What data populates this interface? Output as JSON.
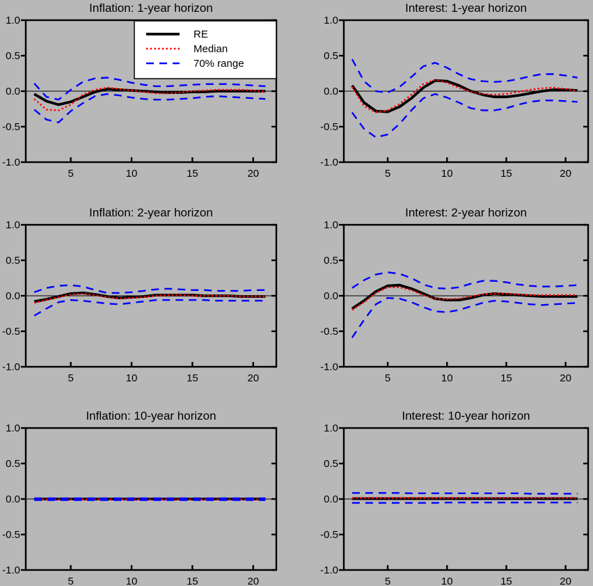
{
  "figure": {
    "background_color": "#b8b8b8",
    "plot_background_color": "#b8b8b8",
    "axis_color": "#000000",
    "legend_background": "#ffffff"
  },
  "legend": {
    "position": "top-left-subplot",
    "entries": [
      {
        "label": "RE",
        "color": "#000000",
        "style": "solid"
      },
      {
        "label": "Median",
        "color": "#ff0000",
        "style": "dotted"
      },
      {
        "label": "70% range",
        "color": "#0000ff",
        "style": "dashed"
      }
    ]
  },
  "chart_data": [
    {
      "type": "line",
      "id": "inflation-1yr",
      "title": "Inflation: 1-year horizon",
      "grid": {
        "row": 0,
        "col": 0
      },
      "legend": true,
      "xlim": [
        1.3,
        21.9
      ],
      "ylim": [
        -1,
        1
      ],
      "xticks": [
        5,
        10,
        15,
        20
      ],
      "xtick_labels": [
        "5",
        "10",
        "15",
        "20"
      ],
      "yticks": [
        1,
        0.5,
        0,
        -0.5,
        -1
      ],
      "ytick_labels": [
        "1.0",
        "0.5",
        "0.0",
        "-0.5",
        "-1.0"
      ],
      "zero_line": true,
      "x": [
        2,
        3,
        4,
        5,
        6,
        7,
        8,
        9,
        10,
        11,
        12,
        13,
        14,
        15,
        16,
        17,
        18,
        19,
        20,
        21
      ],
      "series": [
        {
          "name": "RE",
          "color": "#000000",
          "style": "solid",
          "values": [
            -0.04,
            -0.14,
            -0.19,
            -0.15,
            -0.08,
            -0.01,
            0.03,
            0.02,
            0.01,
            0.0,
            -0.01,
            -0.02,
            -0.02,
            -0.01,
            -0.01,
            0.0,
            0.0,
            0.0,
            0.0,
            0.0
          ]
        },
        {
          "name": "Median",
          "color": "#ff0000",
          "style": "dotted",
          "values": [
            -0.11,
            -0.26,
            -0.27,
            -0.19,
            -0.05,
            0.02,
            0.05,
            0.03,
            0.01,
            -0.01,
            -0.03,
            -0.03,
            -0.02,
            0.0,
            0.01,
            0.02,
            0.02,
            0.02,
            0.01,
            -0.01
          ]
        },
        {
          "name": "70% range (upper)",
          "color": "#0000ff",
          "style": "dashed",
          "values": [
            0.11,
            -0.08,
            -0.12,
            0.02,
            0.13,
            0.18,
            0.19,
            0.16,
            0.12,
            0.09,
            0.07,
            0.07,
            0.08,
            0.09,
            0.1,
            0.1,
            0.1,
            0.09,
            0.08,
            0.07
          ]
        },
        {
          "name": "70% range (lower)",
          "color": "#0000ff",
          "style": "dashed",
          "values": [
            -0.26,
            -0.4,
            -0.44,
            -0.28,
            -0.17,
            -0.07,
            -0.04,
            -0.06,
            -0.09,
            -0.11,
            -0.12,
            -0.12,
            -0.11,
            -0.1,
            -0.08,
            -0.07,
            -0.08,
            -0.09,
            -0.1,
            -0.11
          ]
        }
      ]
    },
    {
      "type": "line",
      "id": "interest-1yr",
      "title": "Interest: 1-year horizon",
      "grid": {
        "row": 0,
        "col": 1
      },
      "legend": false,
      "xlim": [
        1.3,
        21.9
      ],
      "ylim": [
        -1,
        1
      ],
      "xticks": [
        5,
        10,
        15,
        20
      ],
      "xtick_labels": [
        "5",
        "10",
        "15",
        "20"
      ],
      "yticks": [
        1,
        0.5,
        0,
        -0.5,
        -1
      ],
      "ytick_labels": [
        "1.0",
        "0.5",
        "0.0",
        "-0.5",
        "-1.0"
      ],
      "zero_line": true,
      "x": [
        2,
        3,
        4,
        5,
        6,
        7,
        8,
        9,
        10,
        11,
        12,
        13,
        14,
        15,
        16,
        17,
        18,
        19,
        20,
        21
      ],
      "series": [
        {
          "name": "RE",
          "color": "#000000",
          "style": "solid",
          "values": [
            0.08,
            -0.16,
            -0.28,
            -0.29,
            -0.22,
            -0.1,
            0.05,
            0.15,
            0.14,
            0.08,
            0.0,
            -0.05,
            -0.08,
            -0.08,
            -0.06,
            -0.03,
            0.0,
            0.02,
            0.02,
            0.01
          ]
        },
        {
          "name": "Median",
          "color": "#ff0000",
          "style": "dotted",
          "values": [
            0.06,
            -0.21,
            -0.3,
            -0.27,
            -0.18,
            -0.05,
            0.1,
            0.16,
            0.12,
            0.05,
            -0.01,
            -0.04,
            -0.05,
            -0.04,
            -0.01,
            0.02,
            0.04,
            0.05,
            0.03,
            0.0
          ]
        },
        {
          "name": "70% range (upper)",
          "color": "#0000ff",
          "style": "dashed",
          "values": [
            0.45,
            0.14,
            0.0,
            -0.02,
            0.06,
            0.2,
            0.35,
            0.4,
            0.33,
            0.24,
            0.17,
            0.14,
            0.13,
            0.14,
            0.17,
            0.21,
            0.24,
            0.24,
            0.22,
            0.19
          ]
        },
        {
          "name": "70% range (lower)",
          "color": "#0000ff",
          "style": "dashed",
          "values": [
            -0.3,
            -0.53,
            -0.65,
            -0.61,
            -0.46,
            -0.27,
            -0.1,
            -0.04,
            -0.09,
            -0.16,
            -0.24,
            -0.27,
            -0.27,
            -0.24,
            -0.19,
            -0.15,
            -0.13,
            -0.13,
            -0.14,
            -0.15
          ]
        }
      ]
    },
    {
      "type": "line",
      "id": "inflation-2yr",
      "title": "Inflation: 2-year horizon",
      "grid": {
        "row": 1,
        "col": 0
      },
      "legend": false,
      "xlim": [
        1.3,
        21.9
      ],
      "ylim": [
        -1,
        1
      ],
      "xticks": [
        5,
        10,
        15,
        20
      ],
      "xtick_labels": [
        "5",
        "10",
        "15",
        "20"
      ],
      "yticks": [
        1,
        0.5,
        0,
        -0.5,
        -1
      ],
      "ytick_labels": [
        "1.0",
        "0.5",
        "0.0",
        "-0.5",
        "-1.0"
      ],
      "zero_line": true,
      "x": [
        2,
        3,
        4,
        5,
        6,
        7,
        8,
        9,
        10,
        11,
        12,
        13,
        14,
        15,
        16,
        17,
        18,
        19,
        20,
        21
      ],
      "series": [
        {
          "name": "RE",
          "color": "#000000",
          "style": "solid",
          "values": [
            -0.08,
            -0.05,
            -0.01,
            0.03,
            0.04,
            0.02,
            -0.01,
            -0.03,
            -0.02,
            -0.01,
            0.01,
            0.01,
            0.01,
            0.01,
            0.0,
            0.0,
            0.0,
            -0.01,
            -0.01,
            -0.01
          ]
        },
        {
          "name": "Median",
          "color": "#ff0000",
          "style": "dotted",
          "values": [
            -0.1,
            -0.06,
            -0.02,
            0.02,
            0.03,
            0.01,
            -0.02,
            -0.04,
            -0.03,
            -0.02,
            0.0,
            0.01,
            0.01,
            0.0,
            0.0,
            0.0,
            0.0,
            -0.01,
            -0.01,
            -0.01
          ]
        },
        {
          "name": "70% range (upper)",
          "color": "#0000ff",
          "style": "dashed",
          "values": [
            0.05,
            0.11,
            0.14,
            0.15,
            0.13,
            0.08,
            0.04,
            0.04,
            0.05,
            0.07,
            0.09,
            0.1,
            0.09,
            0.08,
            0.08,
            0.07,
            0.07,
            0.07,
            0.08,
            0.08
          ]
        },
        {
          "name": "70% range (lower)",
          "color": "#0000ff",
          "style": "dashed",
          "values": [
            -0.28,
            -0.18,
            -0.09,
            -0.06,
            -0.07,
            -0.09,
            -0.11,
            -0.12,
            -0.1,
            -0.08,
            -0.06,
            -0.06,
            -0.06,
            -0.06,
            -0.06,
            -0.07,
            -0.07,
            -0.07,
            -0.07,
            -0.07
          ]
        }
      ]
    },
    {
      "type": "line",
      "id": "interest-2yr",
      "title": "Interest: 2-year horizon",
      "grid": {
        "row": 1,
        "col": 1
      },
      "legend": false,
      "xlim": [
        1.3,
        21.9
      ],
      "ylim": [
        -1,
        1
      ],
      "xticks": [
        5,
        10,
        15,
        20
      ],
      "xtick_labels": [
        "5",
        "10",
        "15",
        "20"
      ],
      "yticks": [
        1,
        0.5,
        0,
        -0.5,
        -1
      ],
      "ytick_labels": [
        "1.0",
        "0.5",
        "0.0",
        "-0.5",
        "-1.0"
      ],
      "zero_line": true,
      "x": [
        2,
        3,
        4,
        5,
        6,
        7,
        8,
        9,
        10,
        11,
        12,
        13,
        14,
        15,
        16,
        17,
        18,
        19,
        20,
        21
      ],
      "series": [
        {
          "name": "RE",
          "color": "#000000",
          "style": "solid",
          "values": [
            -0.18,
            -0.07,
            0.06,
            0.14,
            0.15,
            0.1,
            0.03,
            -0.04,
            -0.06,
            -0.06,
            -0.03,
            0.01,
            0.03,
            0.02,
            0.01,
            0.0,
            -0.01,
            -0.01,
            -0.01,
            -0.01
          ]
        },
        {
          "name": "Median",
          "color": "#ff0000",
          "style": "dotted",
          "values": [
            -0.2,
            -0.09,
            0.04,
            0.12,
            0.12,
            0.08,
            0.01,
            -0.04,
            -0.05,
            -0.04,
            -0.01,
            0.02,
            0.03,
            0.03,
            0.02,
            0.01,
            0.01,
            0.01,
            0.01,
            0.01
          ]
        },
        {
          "name": "70% range (upper)",
          "color": "#0000ff",
          "style": "dashed",
          "values": [
            0.11,
            0.22,
            0.3,
            0.33,
            0.31,
            0.25,
            0.16,
            0.11,
            0.1,
            0.12,
            0.17,
            0.21,
            0.21,
            0.19,
            0.16,
            0.14,
            0.13,
            0.13,
            0.14,
            0.15
          ]
        },
        {
          "name": "70% range (lower)",
          "color": "#0000ff",
          "style": "dashed",
          "values": [
            -0.59,
            -0.34,
            -0.12,
            -0.03,
            -0.04,
            -0.09,
            -0.16,
            -0.22,
            -0.23,
            -0.2,
            -0.15,
            -0.1,
            -0.07,
            -0.08,
            -0.1,
            -0.12,
            -0.13,
            -0.12,
            -0.11,
            -0.1
          ]
        }
      ]
    },
    {
      "type": "line",
      "id": "inflation-10yr",
      "title": "Inflation: 10-year horizon",
      "grid": {
        "row": 2,
        "col": 0
      },
      "legend": false,
      "xlim": [
        1.3,
        21.9
      ],
      "ylim": [
        -1,
        1
      ],
      "xticks": [
        5,
        10,
        15,
        20
      ],
      "xtick_labels": [
        "5",
        "10",
        "15",
        "20"
      ],
      "yticks": [
        1,
        0.5,
        0,
        -0.5,
        -1
      ],
      "ytick_labels": [
        "1.0",
        "0.5",
        "0.0",
        "-0.5",
        "-1.0"
      ],
      "zero_line": true,
      "x": [
        2,
        3,
        4,
        5,
        6,
        7,
        8,
        9,
        10,
        11,
        12,
        13,
        14,
        15,
        16,
        17,
        18,
        19,
        20,
        21
      ],
      "series": [
        {
          "name": "RE",
          "color": "#000000",
          "style": "solid",
          "values": [
            0,
            0,
            0,
            0,
            0,
            0,
            0,
            0,
            0,
            0,
            0,
            0,
            0,
            0,
            0,
            0,
            0,
            0,
            0,
            0
          ]
        },
        {
          "name": "Median",
          "color": "#ff0000",
          "style": "dotted",
          "values": [
            -0.005,
            -0.005,
            -0.005,
            -0.005,
            -0.005,
            -0.005,
            -0.005,
            -0.005,
            -0.005,
            -0.005,
            -0.005,
            -0.005,
            -0.005,
            -0.005,
            -0.005,
            -0.005,
            -0.005,
            -0.005,
            -0.005,
            -0.005
          ]
        },
        {
          "name": "70% range (upper)",
          "color": "#0000ff",
          "style": "dashed",
          "values": [
            0.01,
            0.01,
            0.01,
            0.01,
            0.01,
            0.01,
            0.01,
            0.01,
            0.01,
            0.01,
            0.01,
            0.01,
            0.01,
            0.01,
            0.01,
            0.01,
            0.01,
            0.01,
            0.01,
            0.01
          ]
        },
        {
          "name": "70% range (lower)",
          "color": "#0000ff",
          "style": "dashed",
          "values": [
            -0.015,
            -0.015,
            -0.015,
            -0.015,
            -0.015,
            -0.015,
            -0.015,
            -0.015,
            -0.015,
            -0.015,
            -0.015,
            -0.015,
            -0.015,
            -0.015,
            -0.015,
            -0.015,
            -0.015,
            -0.015,
            -0.015,
            -0.015
          ]
        }
      ]
    },
    {
      "type": "line",
      "id": "interest-10yr",
      "title": "Interest: 10-year horizon",
      "grid": {
        "row": 2,
        "col": 1
      },
      "legend": false,
      "xlim": [
        1.3,
        21.9
      ],
      "ylim": [
        -1,
        1
      ],
      "xticks": [
        5,
        10,
        15,
        20
      ],
      "xtick_labels": [
        "5",
        "10",
        "15",
        "20"
      ],
      "yticks": [
        1,
        0.5,
        0,
        -0.5,
        -1
      ],
      "ytick_labels": [
        "1.0",
        "0.5",
        "0.0",
        "-0.5",
        "-1.0"
      ],
      "zero_line": true,
      "x": [
        2,
        3,
        4,
        5,
        6,
        7,
        8,
        9,
        10,
        11,
        12,
        13,
        14,
        15,
        16,
        17,
        18,
        19,
        20,
        21
      ],
      "series": [
        {
          "name": "RE",
          "color": "#000000",
          "style": "solid",
          "values": [
            0.005,
            0.005,
            0.005,
            0.005,
            0.005,
            0.005,
            0.005,
            0.005,
            0.005,
            0.005,
            0.005,
            0.005,
            0.005,
            0.005,
            0.005,
            0.005,
            0.005,
            0.005,
            0.005,
            0.005
          ]
        },
        {
          "name": "Median",
          "color": "#ff0000",
          "style": "dotted",
          "values": [
            0.015,
            0.015,
            0.015,
            0.015,
            0.015,
            0.015,
            0.015,
            0.015,
            0.015,
            0.015,
            0.015,
            0.015,
            0.015,
            0.015,
            0.015,
            0.015,
            0.015,
            0.015,
            0.015,
            0.015
          ]
        },
        {
          "name": "70% range (upper)",
          "color": "#0000ff",
          "style": "dashed",
          "values": [
            0.085,
            0.085,
            0.085,
            0.085,
            0.085,
            0.08,
            0.08,
            0.08,
            0.08,
            0.08,
            0.08,
            0.08,
            0.08,
            0.08,
            0.08,
            0.075,
            0.075,
            0.075,
            0.075,
            0.075
          ]
        },
        {
          "name": "70% range (lower)",
          "color": "#0000ff",
          "style": "dashed",
          "values": [
            -0.055,
            -0.055,
            -0.055,
            -0.055,
            -0.055,
            -0.055,
            -0.055,
            -0.055,
            -0.05,
            -0.05,
            -0.05,
            -0.05,
            -0.05,
            -0.05,
            -0.05,
            -0.05,
            -0.05,
            -0.05,
            -0.05,
            -0.05
          ]
        }
      ]
    }
  ]
}
